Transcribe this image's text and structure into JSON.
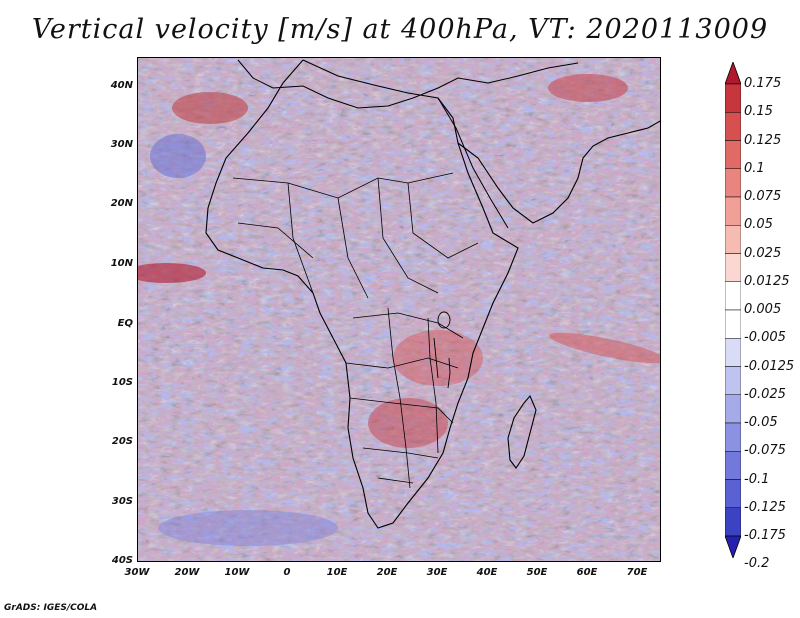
{
  "title": "Vertical velocity [m/s] at 400hPa, VT: 2020113009",
  "variable": "Vertical velocity",
  "units": "m/s",
  "level": "400hPa",
  "valid_time": "2020113009",
  "map": {
    "lon_range": [
      -30,
      75
    ],
    "lat_range": [
      -40,
      45
    ],
    "lat_ticks": [
      "40N",
      "30N",
      "20N",
      "10N",
      "EQ",
      "10S",
      "20S",
      "30S",
      "40S"
    ],
    "lon_ticks": [
      "30W",
      "20W",
      "10W",
      "0",
      "10E",
      "20E",
      "30E",
      "40E",
      "50E",
      "60E",
      "70E"
    ]
  },
  "colorbar": {
    "labels": [
      "0.175",
      "0.15",
      "0.125",
      "0.1",
      "0.075",
      "0.05",
      "0.025",
      "0.0125",
      "0.005",
      "-0.005",
      "-0.0125",
      "-0.025",
      "-0.05",
      "-0.075",
      "-0.1",
      "-0.125",
      "-0.175",
      "-0.2"
    ],
    "colors": [
      "#b2182b",
      "#c6363c",
      "#d6504f",
      "#e06a66",
      "#e9857e",
      "#f0a097",
      "#f6bcb3",
      "#fad7d0",
      "#ffffff",
      "#ffffff",
      "#d9dcf7",
      "#bfc3f0",
      "#a5aae9",
      "#8c92e2",
      "#7279da",
      "#5961d3",
      "#3c43c3",
      "#2520b0"
    ]
  },
  "footer": "GrADS: IGES/COLA"
}
